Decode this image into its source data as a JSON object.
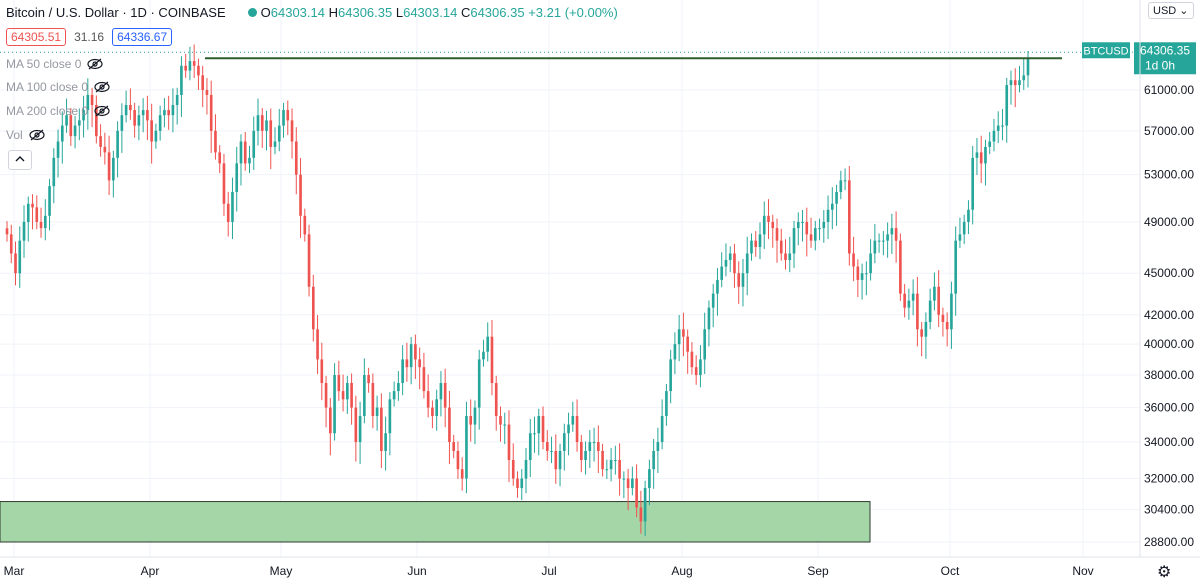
{
  "header": {
    "title": "Bitcoin / U.S. Dollar · 1D · COINBASE",
    "ohlc": {
      "o_label": "O",
      "o": "64303.14",
      "h_label": "H",
      "h": "64306.35",
      "l_label": "L",
      "l": "64303.14",
      "c_label": "C",
      "c": "64306.35",
      "change": "+3.21 (+0.00%)"
    }
  },
  "quote": {
    "sell": "64305.51",
    "spread": "31.16",
    "buy": "64336.67"
  },
  "indicators": [
    {
      "label": "MA 50 close 0"
    },
    {
      "label": "MA 100 close 0"
    },
    {
      "label": "MA 200 close 0"
    },
    {
      "label": "Vol"
    }
  ],
  "currency_button": "USD",
  "symbol_badge": {
    "symbol": "BTCUSD",
    "price": "64306.35",
    "timeframe": "1d 0h"
  },
  "colors": {
    "up": "#26a69a",
    "down": "#ef5350",
    "support_zone": "#a5d6a7",
    "resistance_line": "#2e5d2e",
    "badge": "#26a69a"
  },
  "chart_data": {
    "type": "candlestick",
    "y_scale": "log",
    "ylim": [
      28000,
      66000
    ],
    "y_tick_labels": [
      "61000.00",
      "57000.00",
      "53000.00",
      "49000.00",
      "45000.00",
      "42000.00",
      "40000.00",
      "38000.00",
      "36000.00",
      "34000.00",
      "32000.00",
      "30400.00",
      "28800.00"
    ],
    "x_tick_labels": [
      "Mar",
      "Apr",
      "May",
      "Jun",
      "Jul",
      "Aug",
      "Sep",
      "Oct",
      "Nov"
    ],
    "annotations": {
      "resistance_line_price": 64300,
      "support_zone": {
        "low": 28800,
        "high": 30800,
        "from": "Mar",
        "to": "Sep 13"
      }
    },
    "closes": [
      48000,
      46500,
      45000,
      47500,
      49000,
      50500,
      50200,
      49000,
      48500,
      49500,
      52000,
      54500,
      56000,
      57500,
      58500,
      56500,
      57500,
      58000,
      59000,
      60500,
      59500,
      56500,
      55500,
      55000,
      52500,
      54500,
      57000,
      58500,
      59500,
      59000,
      57500,
      58500,
      59000,
      58000,
      56000,
      57000,
      58500,
      59000,
      58500,
      59500,
      60500,
      63500,
      63000,
      64000,
      63500,
      62500,
      61000,
      60500,
      57000,
      55000,
      54000,
      50500,
      49000,
      51500,
      54000,
      56000,
      54000,
      54500,
      57000,
      58500,
      57000,
      58000,
      55500,
      56000,
      57500,
      59000,
      58000,
      56000,
      53000,
      49500,
      48000,
      44000,
      41000,
      39000,
      37500,
      36000,
      34500,
      38000,
      37000,
      36500,
      37500,
      36000,
      34000,
      35500,
      38000,
      37500,
      35500,
      36000,
      33500,
      34500,
      36500,
      37000,
      37500,
      39000,
      38500,
      40000,
      39000,
      38500,
      37000,
      36000,
      35500,
      36500,
      37500,
      36000,
      34000,
      33500,
      32500,
      32000,
      35500,
      35000,
      36000,
      39000,
      39500,
      40500,
      37500,
      35500,
      35000,
      35000,
      33000,
      32000,
      31500,
      32000,
      33000,
      34500,
      34500,
      35500,
      34000,
      33500,
      33500,
      32500,
      33500,
      34500,
      35000,
      35500,
      34000,
      33000,
      33500,
      34000,
      34000,
      33500,
      32500,
      32500,
      33000,
      33000,
      32000,
      32000,
      31500,
      32000,
      30500,
      29800,
      31500,
      32500,
      33500,
      34000,
      35500,
      37000,
      39000,
      40000,
      41000,
      40500,
      39500,
      38500,
      38000,
      39000,
      41000,
      42500,
      43500,
      44500,
      45500,
      46000,
      46500,
      45000,
      44000,
      45000,
      46500,
      47500,
      47000,
      48000,
      49500,
      49000,
      48500,
      47500,
      46500,
      46000,
      46500,
      48500,
      49000,
      49000,
      48000,
      47500,
      48500,
      48500,
      49000,
      50000,
      50500,
      51500,
      52500,
      52500,
      46500,
      45500,
      44500,
      45000,
      45000,
      46500,
      47500,
      47500,
      47500,
      48000,
      48500,
      47500,
      43500,
      42500,
      43000,
      43500,
      41000,
      40500,
      41500,
      43000,
      44000,
      42000,
      41500,
      41000,
      43500,
      47500,
      48000,
      49000,
      50000,
      54500,
      55000,
      54000,
      55500,
      56000,
      57000,
      57500,
      57500,
      61500,
      62000,
      61500,
      62000,
      62500,
      64306
    ]
  }
}
